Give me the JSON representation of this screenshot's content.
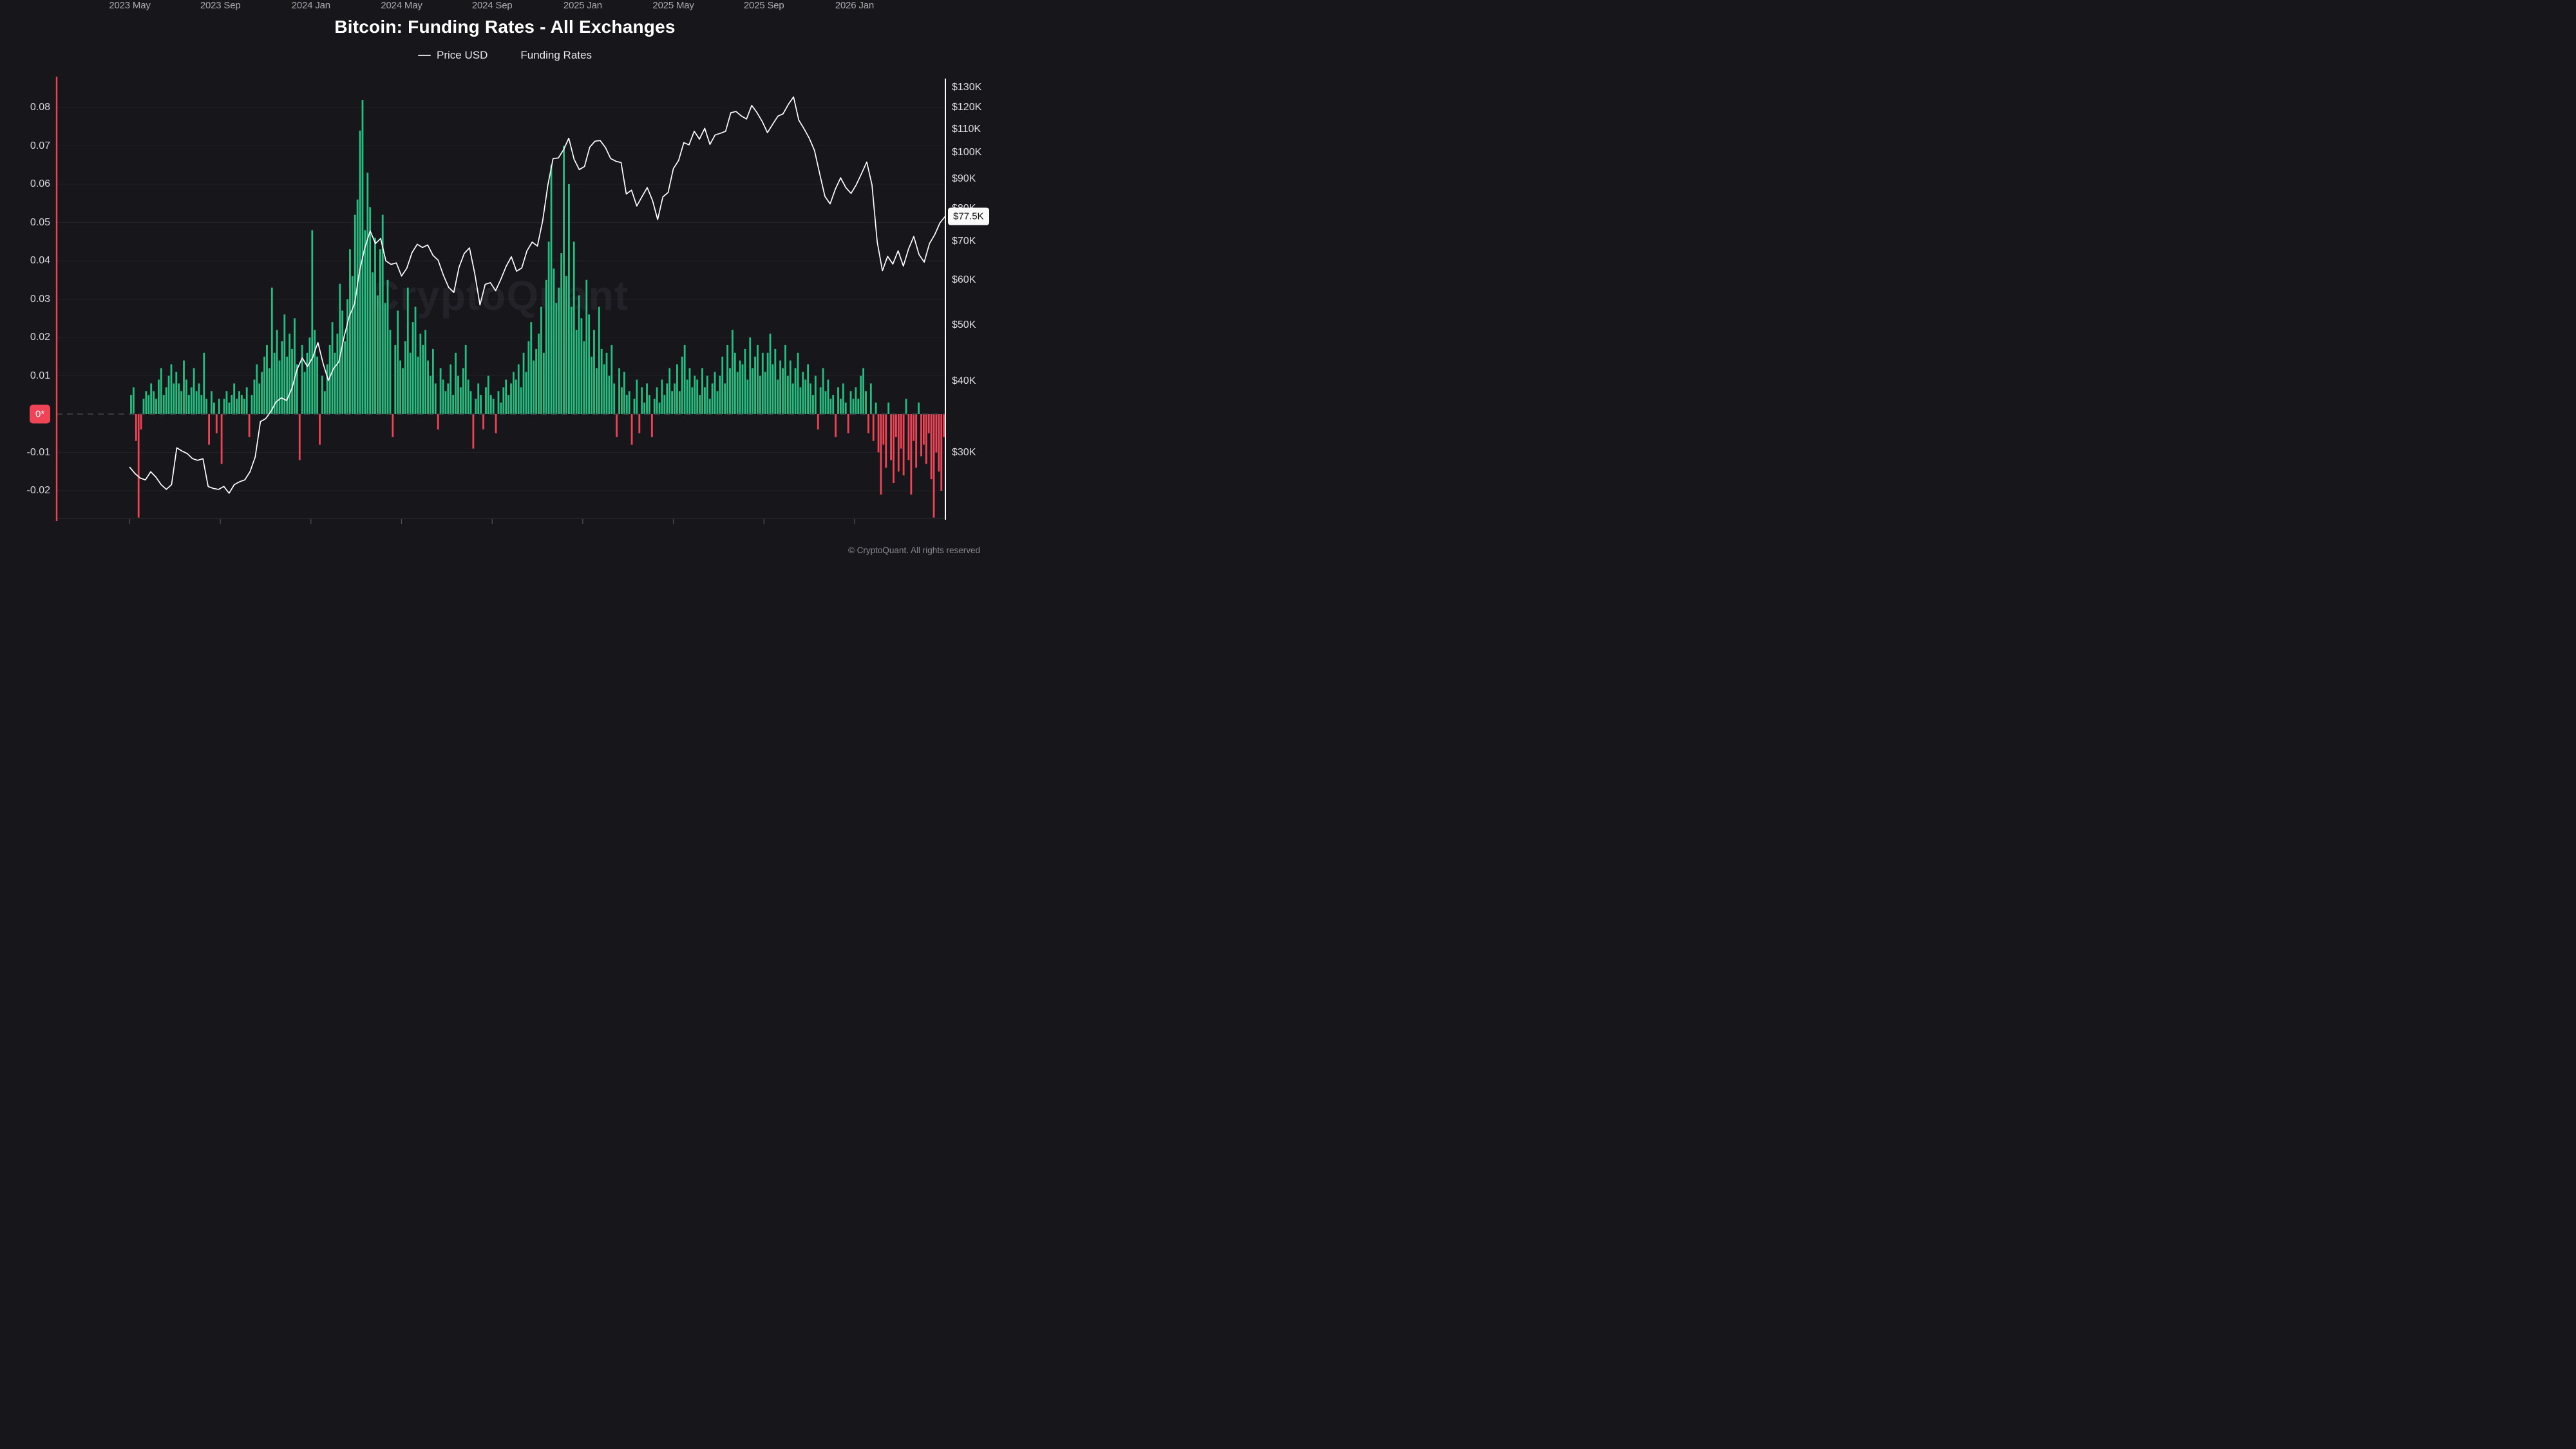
{
  "title": "Bitcoin: Funding Rates - All Exchanges",
  "legend": [
    {
      "label": "Price USD",
      "marker": "line",
      "color": "#d6d6da"
    },
    {
      "label": "Funding Rates",
      "marker": "dot",
      "color": "#26bd81"
    }
  ],
  "watermark": "CryptoQuant",
  "footer": "© CryptoQuant. All rights reserved",
  "colors": {
    "background": "#17171b",
    "funding_positive": "#26bd81",
    "funding_negative": "#ef4456",
    "price_line": "#ffffff",
    "left_axis_line": "#ef4456",
    "right_axis_line": "#ffffff",
    "gridline": "rgba(255,255,255,0.05)",
    "zero_dash": "#46464e",
    "tick_text": "#a9a9b0"
  },
  "chart_data": {
    "type": "mixed",
    "title": "Bitcoin: Funding Rates - All Exchanges",
    "x_domain": {
      "start": "2023-05",
      "end": "2026-05",
      "months": 36
    },
    "x_axis": {
      "ticks": [
        "2023 May",
        "2023 Sep",
        "2024 Jan",
        "2024 May",
        "2024 Sep",
        "2025 Jan",
        "2025 May",
        "2025 Sep",
        "2026 Jan"
      ]
    },
    "left_axis": {
      "name": "Funding Rates",
      "ticks": [
        0.08,
        0.07,
        0.06,
        0.05,
        0.04,
        0.03,
        0.02,
        0.01,
        -0.01,
        -0.02
      ],
      "zero_label": "0*",
      "zero_line": "dashed",
      "range": [
        -0.029,
        0.0875
      ]
    },
    "right_axis": {
      "name": "Price USD",
      "scale": "log",
      "ticks_usd_k": [
        130,
        120,
        110,
        100,
        90,
        80,
        70,
        60,
        50,
        40,
        30
      ],
      "current_price_label": "$77.5K",
      "current_price_usd_k": 77.5
    },
    "series": [
      {
        "name": "Funding Rates",
        "type": "bar",
        "axis": "left",
        "samples_per_month": 9,
        "values": [
          0.005,
          0.007,
          -0.007,
          -0.027,
          -0.004,
          0.004,
          0.006,
          0.005,
          0.008,
          0.006,
          0.004,
          0.009,
          0.012,
          0.005,
          0.007,
          0.01,
          0.013,
          0.008,
          0.011,
          0.008,
          0.006,
          0.014,
          0.009,
          0.005,
          0.007,
          0.012,
          0.006,
          0.008,
          0.005,
          0.016,
          0.004,
          -0.008,
          0.006,
          0.003,
          -0.005,
          0.004,
          -0.013,
          0.004,
          0.006,
          0.003,
          0.005,
          0.008,
          0.004,
          0.006,
          0.005,
          0.004,
          0.007,
          -0.006,
          0.005,
          0.009,
          0.013,
          0.008,
          0.011,
          0.015,
          0.018,
          0.012,
          0.033,
          0.016,
          0.022,
          0.014,
          0.019,
          0.026,
          0.015,
          0.021,
          0.017,
          0.025,
          0.013,
          -0.012,
          0.018,
          0.011,
          0.016,
          0.02,
          0.048,
          0.022,
          0.015,
          -0.008,
          0.01,
          0.006,
          0.013,
          0.018,
          0.024,
          0.016,
          0.021,
          0.034,
          0.027,
          0.019,
          0.03,
          0.043,
          0.036,
          0.052,
          0.056,
          0.074,
          0.082,
          0.048,
          0.063,
          0.054,
          0.037,
          0.046,
          0.031,
          0.043,
          0.052,
          0.029,
          0.035,
          0.022,
          -0.006,
          0.018,
          0.027,
          0.014,
          0.012,
          0.019,
          0.033,
          0.016,
          0.024,
          0.028,
          0.015,
          0.021,
          0.018,
          0.022,
          0.014,
          0.01,
          0.017,
          0.008,
          -0.004,
          0.012,
          0.009,
          0.006,
          0.008,
          0.013,
          0.005,
          0.016,
          0.01,
          0.007,
          0.012,
          0.018,
          0.009,
          0.006,
          -0.009,
          0.004,
          0.008,
          0.005,
          -0.004,
          0.007,
          0.01,
          0.005,
          0.004,
          -0.005,
          0.006,
          0.003,
          0.007,
          0.009,
          0.005,
          0.008,
          0.011,
          0.009,
          0.013,
          0.007,
          0.016,
          0.011,
          0.019,
          0.024,
          0.014,
          0.017,
          0.021,
          0.028,
          0.016,
          0.035,
          0.045,
          0.065,
          0.038,
          0.029,
          0.033,
          0.042,
          0.07,
          0.036,
          0.06,
          0.028,
          0.045,
          0.022,
          0.031,
          0.025,
          0.019,
          0.035,
          0.026,
          0.015,
          0.022,
          0.012,
          0.028,
          0.017,
          0.013,
          0.016,
          0.01,
          0.018,
          0.008,
          -0.006,
          0.012,
          0.007,
          0.011,
          0.005,
          0.006,
          -0.008,
          0.004,
          0.009,
          -0.005,
          0.007,
          0.003,
          0.008,
          0.005,
          -0.006,
          0.004,
          0.007,
          0.003,
          0.009,
          0.005,
          0.008,
          0.012,
          0.006,
          0.008,
          0.013,
          0.006,
          0.015,
          0.018,
          0.009,
          0.012,
          0.007,
          0.01,
          0.009,
          0.005,
          0.012,
          0.007,
          0.01,
          0.004,
          0.008,
          0.011,
          0.006,
          0.01,
          0.015,
          0.008,
          0.018,
          0.012,
          0.022,
          0.016,
          0.011,
          0.014,
          0.013,
          0.017,
          0.009,
          0.02,
          0.012,
          0.015,
          0.018,
          0.01,
          0.016,
          0.011,
          0.016,
          0.021,
          0.013,
          0.017,
          0.009,
          0.014,
          0.012,
          0.018,
          0.01,
          0.014,
          0.008,
          0.012,
          0.016,
          0.007,
          0.011,
          0.009,
          0.013,
          0.008,
          0.005,
          0.01,
          -0.004,
          0.007,
          0.012,
          0.006,
          0.009,
          0.004,
          0.005,
          -0.006,
          0.007,
          0.004,
          0.008,
          0.003,
          -0.005,
          0.006,
          0.004,
          0.007,
          0.004,
          0.01,
          0.012,
          0.006,
          -0.005,
          0.008,
          -0.007,
          0.003,
          -0.01,
          -0.021,
          -0.008,
          -0.014,
          0.003,
          -0.012,
          -0.018,
          -0.006,
          -0.015,
          -0.009,
          -0.016,
          0.004,
          -0.012,
          -0.021,
          -0.007,
          -0.014,
          0.003,
          -0.011,
          -0.008,
          -0.013,
          -0.005,
          -0.017,
          -0.027,
          -0.01,
          -0.015,
          -0.02,
          -0.006
        ]
      },
      {
        "name": "Price USD",
        "type": "line",
        "axis": "right",
        "samples_per_month": 4.3333,
        "values_usd_k": [
          28.3,
          27.6,
          27.1,
          26.9,
          27.8,
          27.2,
          26.4,
          25.9,
          26.4,
          30.6,
          30.2,
          29.9,
          29.3,
          29.1,
          29.3,
          26.2,
          26.0,
          25.9,
          26.2,
          25.5,
          26.4,
          26.7,
          26.9,
          27.8,
          29.5,
          34.0,
          34.4,
          35.4,
          36.8,
          37.4,
          37.0,
          38.8,
          41.9,
          43.9,
          42.4,
          44.0,
          46.7,
          42.9,
          40.1,
          42.1,
          43.2,
          47.8,
          51.9,
          54.5,
          62.5,
          68.4,
          73.1,
          69.5,
          70.9,
          64.8,
          63.9,
          64.3,
          61.0,
          62.9,
          67.0,
          69.3,
          68.4,
          69.1,
          66.3,
          65.0,
          61.2,
          58.3,
          57.1,
          63.2,
          66.8,
          68.3,
          61.6,
          54.3,
          59.0,
          59.4,
          57.5,
          60.2,
          63.4,
          65.9,
          62.2,
          63.0,
          67.5,
          69.9,
          68.8,
          76.2,
          88.0,
          97.8,
          98.0,
          101.3,
          106.1,
          97.5,
          93.5,
          94.7,
          102.3,
          104.8,
          105.1,
          102.2,
          97.8,
          96.7,
          96.2,
          84.8,
          86.1,
          80.8,
          83.9,
          87.0,
          82.7,
          76.5,
          83.8,
          85.3,
          93.9,
          97.0,
          104.2,
          103.3,
          109.1,
          105.7,
          110.4,
          103.5,
          107.5,
          108.2,
          109.1,
          117.5,
          118.1,
          116.0,
          114.6,
          121.0,
          117.6,
          113.5,
          108.5,
          112.2,
          115.9,
          117.0,
          121.5,
          125.2,
          114.1,
          110.2,
          106.1,
          101.0,
          92.0,
          84.0,
          81.5,
          86.5,
          90.5,
          87.0,
          85.0,
          88.0,
          92.0,
          96.4,
          88.0,
          70.0,
          62.3,
          66.0,
          64.0,
          67.5,
          63.5,
          68.0,
          71.5,
          66.5,
          64.5,
          69.5,
          72.0,
          75.5,
          77.5
        ]
      }
    ]
  }
}
